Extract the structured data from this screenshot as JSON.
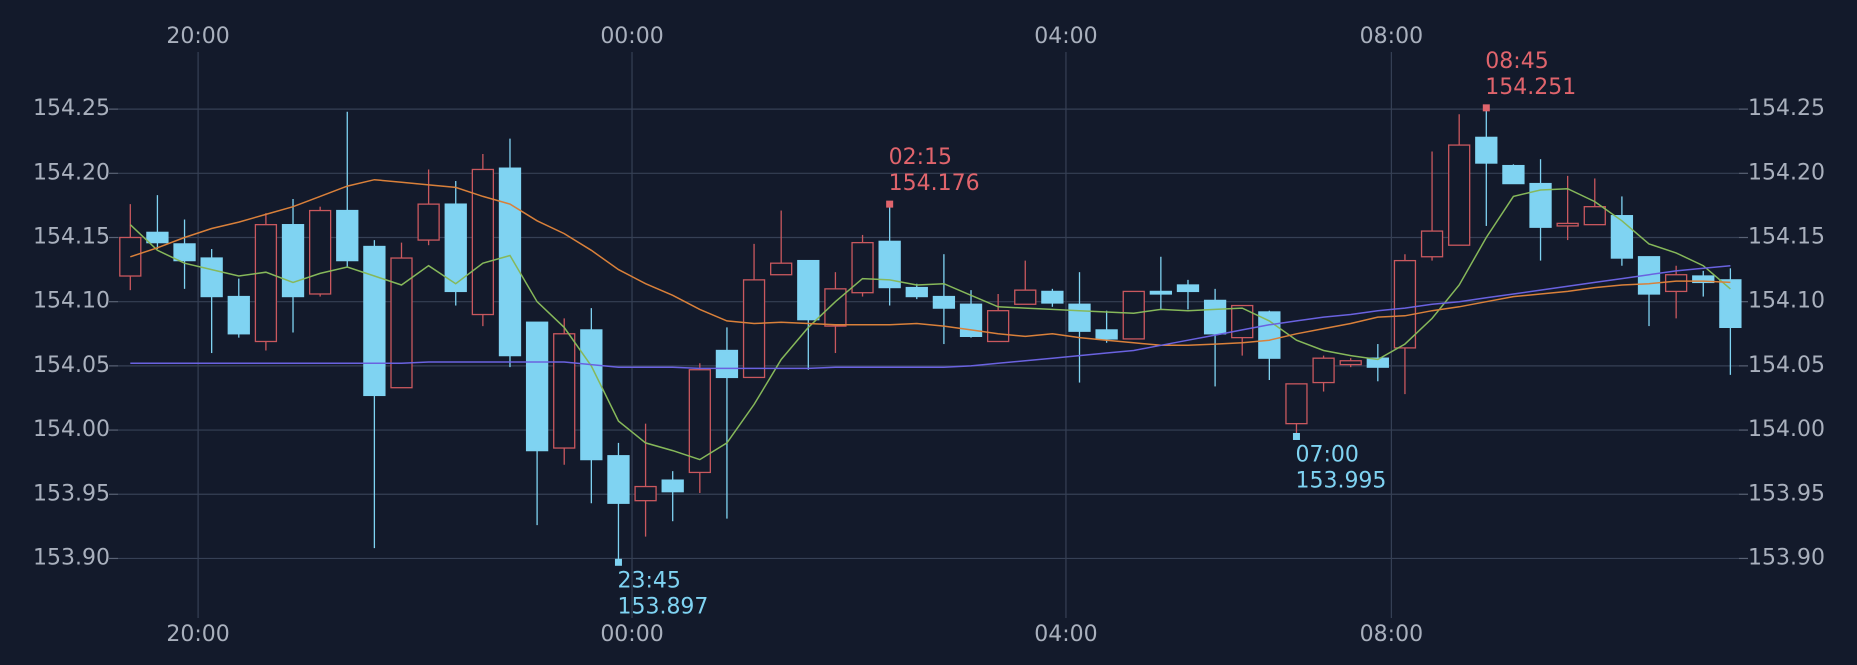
{
  "chart_data": {
    "type": "candlestick",
    "categories": [
      null,
      null,
      null,
      "20:00",
      null,
      null,
      null,
      null,
      null,
      null,
      null,
      null,
      null,
      null,
      null,
      null,
      null,
      null,
      null,
      "00:00",
      null,
      null,
      null,
      null,
      null,
      null,
      null,
      null,
      null,
      null,
      null,
      null,
      null,
      null,
      null,
      "04:00",
      null,
      null,
      null,
      null,
      null,
      null,
      null,
      null,
      null,
      null,
      null,
      "08:00",
      null,
      null,
      null,
      null,
      null,
      null,
      null,
      null,
      null,
      null,
      null,
      null
    ],
    "open": [
      154.12,
      154.154,
      154.145,
      154.134,
      154.104,
      154.069,
      154.16,
      154.106,
      154.171,
      154.143,
      154.033,
      154.148,
      154.176,
      154.09,
      154.204,
      154.084,
      153.986,
      154.078,
      153.98,
      153.945,
      153.961,
      153.967,
      154.062,
      154.041,
      154.121,
      154.132,
      154.081,
      154.107,
      154.147,
      154.111,
      154.104,
      154.098,
      154.069,
      154.098,
      154.108,
      154.098,
      154.078,
      154.071,
      154.108,
      154.113,
      154.101,
      154.072,
      154.092,
      154.005,
      154.037,
      154.051,
      154.056,
      154.064,
      154.135,
      154.144,
      154.228,
      154.206,
      154.192,
      154.159,
      154.16,
      154.167,
      154.135,
      154.108,
      154.12,
      154.117
    ],
    "high": [
      154.176,
      154.183,
      154.164,
      154.141,
      154.118,
      154.169,
      154.18,
      154.174,
      154.248,
      154.148,
      154.146,
      154.203,
      154.194,
      154.215,
      154.227,
      154.084,
      154.087,
      154.095,
      153.99,
      154.005,
      153.968,
      154.052,
      154.08,
      154.145,
      154.171,
      154.132,
      154.123,
      154.152,
      154.176,
      154.114,
      154.137,
      154.109,
      154.106,
      154.132,
      154.11,
      154.123,
      154.093,
      154.108,
      154.135,
      154.117,
      154.11,
      154.097,
      154.093,
      154.036,
      154.058,
      154.056,
      154.067,
      154.137,
      154.217,
      154.246,
      154.251,
      154.207,
      154.211,
      154.198,
      154.196,
      154.182,
      154.135,
      154.128,
      154.124,
      154.126
    ],
    "low": [
      154.109,
      154.141,
      154.11,
      154.06,
      154.072,
      154.062,
      154.076,
      154.104,
      154.127,
      153.908,
      154.033,
      154.144,
      154.097,
      154.081,
      154.049,
      153.926,
      153.973,
      153.943,
      153.897,
      153.917,
      153.929,
      153.951,
      153.931,
      154.041,
      154.121,
      154.047,
      154.06,
      154.104,
      154.097,
      154.102,
      154.067,
      154.072,
      154.069,
      154.098,
      154.096,
      154.037,
      154.068,
      154.071,
      154.094,
      154.094,
      154.034,
      154.058,
      154.039,
      153.995,
      154.03,
      154.049,
      154.038,
      154.028,
      154.132,
      154.144,
      154.159,
      154.192,
      154.132,
      154.148,
      154.16,
      154.128,
      154.081,
      154.087,
      154.104,
      154.043
    ],
    "close": [
      154.15,
      154.146,
      154.132,
      154.104,
      154.075,
      154.16,
      154.104,
      154.171,
      154.132,
      154.027,
      154.134,
      154.176,
      154.108,
      154.203,
      154.058,
      153.984,
      154.075,
      153.977,
      153.943,
      153.956,
      153.952,
      154.047,
      154.041,
      154.117,
      154.13,
      154.086,
      154.11,
      154.146,
      154.111,
      154.104,
      154.095,
      154.073,
      154.093,
      154.109,
      154.099,
      154.077,
      154.071,
      154.108,
      154.106,
      154.108,
      154.075,
      154.097,
      154.056,
      154.036,
      154.056,
      154.054,
      154.049,
      154.132,
      154.155,
      154.222,
      154.208,
      154.192,
      154.158,
      154.161,
      154.174,
      154.134,
      154.106,
      154.121,
      154.115,
      154.08
    ],
    "up_color": "#c9585e",
    "down_color": "#7fd3f2",
    "lines": [
      {
        "color": "#86b85a",
        "values": [
          154.16,
          154.14,
          154.13,
          154.125,
          154.12,
          154.123,
          154.115,
          154.122,
          154.127,
          154.12,
          154.113,
          154.128,
          154.114,
          154.13,
          154.136,
          154.1,
          154.08,
          154.05,
          154.007,
          153.99,
          153.984,
          153.977,
          153.99,
          154.02,
          154.055,
          154.08,
          154.1,
          154.118,
          154.117,
          154.113,
          154.114,
          154.105,
          154.096,
          154.095,
          154.094,
          154.093,
          154.092,
          154.091,
          154.094,
          154.093,
          154.094,
          154.095,
          154.085,
          154.07,
          154.062,
          154.058,
          154.055,
          154.067,
          154.087,
          154.113,
          154.15,
          154.182,
          154.187,
          154.188,
          154.178,
          154.163,
          154.145,
          154.138,
          154.128,
          154.11
        ]
      },
      {
        "color": "#d9803a",
        "values": [
          154.135,
          154.142,
          154.15,
          154.157,
          154.162,
          154.168,
          154.174,
          154.182,
          154.19,
          154.195,
          154.193,
          154.191,
          154.189,
          154.182,
          154.176,
          154.163,
          154.153,
          154.14,
          154.125,
          154.114,
          154.105,
          154.094,
          154.085,
          154.083,
          154.084,
          154.083,
          154.082,
          154.082,
          154.082,
          154.083,
          154.081,
          154.078,
          154.075,
          154.073,
          154.075,
          154.072,
          154.07,
          154.068,
          154.066,
          154.066,
          154.067,
          154.068,
          154.07,
          154.075,
          154.079,
          154.083,
          154.088,
          154.089,
          154.093,
          154.096,
          154.1,
          154.104,
          154.106,
          154.108,
          154.111,
          154.113,
          154.114,
          154.116,
          154.116,
          154.115
        ]
      },
      {
        "color": "#6a62e0",
        "values": [
          154.052,
          154.052,
          154.052,
          154.052,
          154.052,
          154.052,
          154.052,
          154.052,
          154.052,
          154.052,
          154.052,
          154.053,
          154.053,
          154.053,
          154.053,
          154.053,
          154.053,
          154.051,
          154.049,
          154.049,
          154.049,
          154.048,
          154.048,
          154.048,
          154.048,
          154.048,
          154.049,
          154.049,
          154.049,
          154.049,
          154.049,
          154.05,
          154.052,
          154.054,
          154.056,
          154.058,
          154.06,
          154.062,
          154.066,
          154.07,
          154.074,
          154.078,
          154.082,
          154.085,
          154.088,
          154.09,
          154.093,
          154.095,
          154.098,
          154.1,
          154.103,
          154.106,
          154.109,
          154.112,
          154.115,
          154.118,
          154.121,
          154.124,
          154.126,
          154.128
        ]
      }
    ],
    "annotations": [
      {
        "index": 18,
        "label": "23:45",
        "value": 153.897,
        "position": "below",
        "color": "#7fd3f2"
      },
      {
        "index": 28,
        "label": "02:15",
        "value": 154.176,
        "position": "above",
        "color": "#e0646c"
      },
      {
        "index": 43,
        "label": "07:00",
        "value": 153.995,
        "position": "below",
        "color": "#7fd3f2"
      },
      {
        "index": 50,
        "label": "08:45",
        "value": 154.251,
        "position": "above",
        "color": "#e0646c"
      }
    ],
    "ylim": [
      153.817,
      154.335
    ],
    "yticks": [
      {
        "value": 153.9,
        "label": "153.90"
      },
      153.95,
      {
        "value": 154.0,
        "label": "154.00"
      },
      154.05,
      {
        "value": 154.1,
        "label": "154.10"
      },
      154.15,
      {
        "value": 154.2,
        "label": "154.20"
      },
      154.25
    ],
    "grid": true
  }
}
